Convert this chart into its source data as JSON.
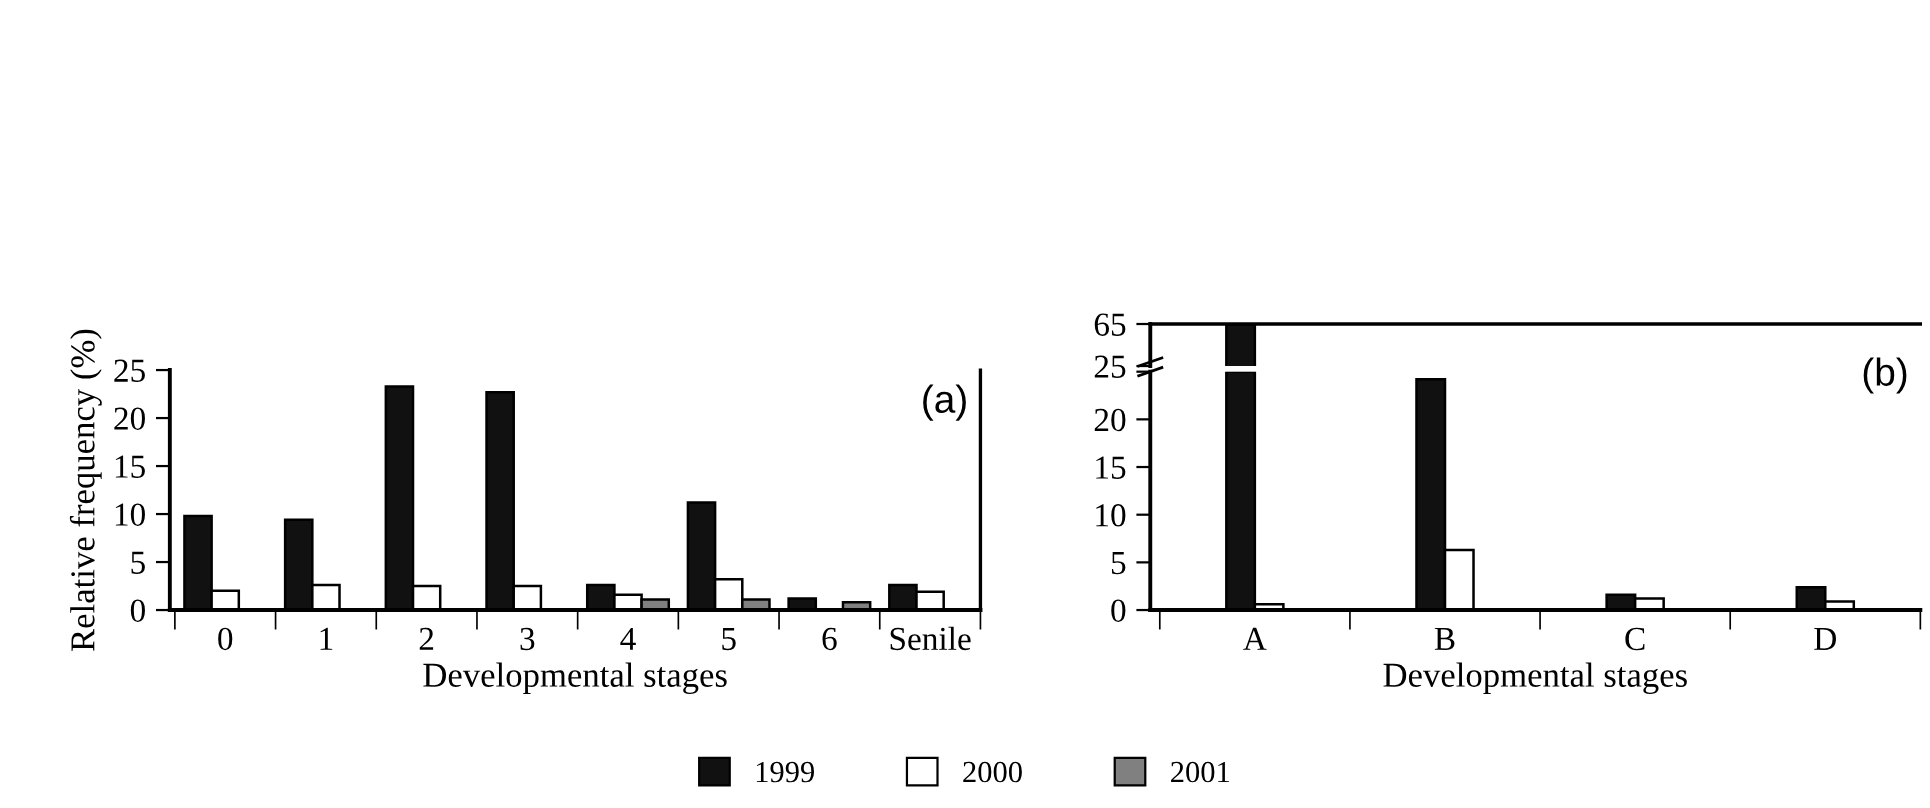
{
  "chart_data": [
    {
      "type": "bar",
      "title": "(a)",
      "xlabel": "Developmental stages",
      "ylabel": "Relative frequency (%)",
      "categories": [
        "0",
        "1",
        "2",
        "3",
        "4",
        "5",
        "6",
        "Senile"
      ],
      "ylim": [
        0,
        25
      ],
      "yticks": [
        0,
        5,
        10,
        15,
        20,
        25
      ],
      "legend": "bottom",
      "series": [
        {
          "name": "1999",
          "color": "#111111",
          "values": [
            9.8,
            9.4,
            23.3,
            22.7,
            2.6,
            11.2,
            1.2,
            2.6
          ]
        },
        {
          "name": "2000",
          "color": "#ffffff",
          "values": [
            2.0,
            2.6,
            2.5,
            2.5,
            1.6,
            3.2,
            null,
            1.9
          ]
        },
        {
          "name": "2001",
          "color": "#808080",
          "values": [
            null,
            null,
            null,
            null,
            1.1,
            1.1,
            0.8,
            null
          ]
        }
      ]
    },
    {
      "type": "bar",
      "categories": [
        null,
        null,
        null,
        null
      ],
      "ylim": [
        25,
        65
      ],
      "yticks": [
        25,
        65
      ],
      "tick_labels": "y",
      "series": [
        {
          "color": "#111111",
          "values": [
            65,
            null,
            null,
            null
          ]
        },
        {
          "color": "#ffffff",
          "values": [
            null,
            null,
            null,
            null
          ]
        }
      ]
    },
    {
      "type": "bar",
      "title": "(b)",
      "xlabel": "Developmental stages",
      "categories": [
        "A",
        "B",
        "C",
        "D"
      ],
      "ylim": [
        0,
        25
      ],
      "yticks": [
        0,
        5,
        10,
        15,
        20,
        {
          "value": 25,
          "label": null
        }
      ],
      "legend": "bottom",
      "series": [
        {
          "name": "1999",
          "color": "#111111",
          "values": [
            25,
            24.2,
            1.6,
            2.4
          ]
        },
        {
          "name": "2000",
          "color": "#ffffff",
          "values": [
            0.6,
            6.3,
            1.2,
            0.9
          ]
        }
      ]
    }
  ]
}
